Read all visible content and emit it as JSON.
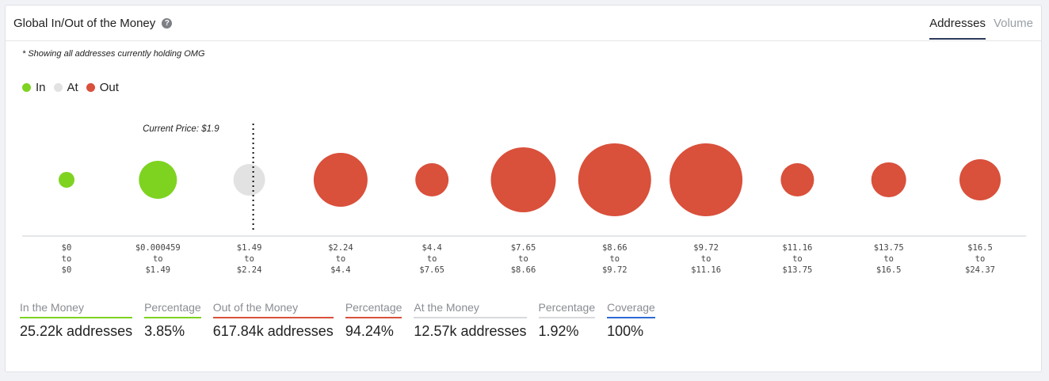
{
  "card": {
    "title": "Global In/Out of the Money",
    "help_icon": "question-circle-icon",
    "tabs": [
      {
        "label": "Addresses",
        "active": true
      },
      {
        "label": "Volume",
        "active": false
      }
    ]
  },
  "note": "* Showing all addresses currently holding OMG",
  "legend": [
    {
      "label": "In",
      "color": "#7ed321"
    },
    {
      "label": "At",
      "color": "#e2e2e2"
    },
    {
      "label": "Out",
      "color": "#d9503b"
    }
  ],
  "chart_data": {
    "type": "scatter",
    "current_price_label": "Current Price: $1.9",
    "current_price_after_bucket": 2,
    "buckets": [
      {
        "from": "$0",
        "to": "$0",
        "status": "in",
        "size": 10
      },
      {
        "from": "$0.000459",
        "to": "$1.49",
        "status": "in",
        "size": 24
      },
      {
        "from": "$1.49",
        "to": "$2.24",
        "status": "at",
        "size": 20
      },
      {
        "from": "$2.24",
        "to": "$4.4",
        "status": "out",
        "size": 34
      },
      {
        "from": "$4.4",
        "to": "$7.65",
        "status": "out",
        "size": 21
      },
      {
        "from": "$7.65",
        "to": "$8.66",
        "status": "out",
        "size": 41
      },
      {
        "from": "$8.66",
        "to": "$9.72",
        "status": "out",
        "size": 46
      },
      {
        "from": "$9.72",
        "to": "$11.16",
        "status": "out",
        "size": 46
      },
      {
        "from": "$11.16",
        "to": "$13.75",
        "status": "out",
        "size": 21
      },
      {
        "from": "$13.75",
        "to": "$16.5",
        "status": "out",
        "size": 22
      },
      {
        "from": "$16.5",
        "to": "$24.37",
        "status": "out",
        "size": 26
      }
    ],
    "range_connector": "to",
    "colors": {
      "in": "#7ed321",
      "at": "#e2e2e2",
      "out": "#d9503b"
    }
  },
  "stats": [
    {
      "label": "In the Money",
      "value": "25.22k addresses",
      "accent": "#7ed321"
    },
    {
      "label": "Percentage",
      "value": "3.85%",
      "accent": "#7ed321"
    },
    {
      "label": "Out of the Money",
      "value": "617.84k addresses",
      "accent": "#d9503b"
    },
    {
      "label": "Percentage",
      "value": "94.24%",
      "accent": "#d9503b"
    },
    {
      "label": "At the Money",
      "value": "12.57k addresses",
      "accent": "#d7d9dc"
    },
    {
      "label": "Percentage",
      "value": "1.92%",
      "accent": "#d7d9dc"
    },
    {
      "label": "Coverage",
      "value": "100%",
      "accent": "#2e6bd6"
    }
  ]
}
